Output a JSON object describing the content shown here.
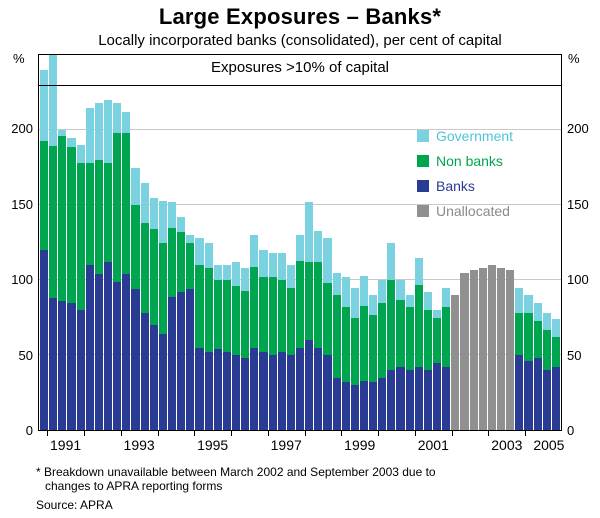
{
  "title": "Large Exposures – Banks*",
  "subtitle": "Locally incorporated banks (consolidated), per cent of capital",
  "panel_label": "Exposures >10% of capital",
  "axis_unit": "%",
  "footnote_line1": "* Breakdown unavailable between March 2002 and September 2003 due to",
  "footnote_line2": "changes to APRA reporting forms",
  "source": "Source: APRA",
  "chart_data": {
    "type": "bar",
    "stacked": true,
    "title": "Large Exposures – Banks*",
    "subtitle": "Locally incorporated banks (consolidated), per cent of capital",
    "panel_label": "Exposures >10% of capital",
    "ylabel": "per cent of capital",
    "ylim": [
      0,
      250
    ],
    "yticks": [
      0,
      50,
      100,
      150,
      200
    ],
    "grid": true,
    "legend_position": "inside-right",
    "colors": {
      "banks": "#2a3b94",
      "nonbanks": "#00a550",
      "government": "#7ad1e0",
      "unallocated": "#909090"
    },
    "legend": [
      {
        "key": "government",
        "label": "Government",
        "color": "#4cc5da"
      },
      {
        "key": "nonbanks",
        "label": "Non banks",
        "color": "#00a550"
      },
      {
        "key": "banks",
        "label": "Banks",
        "color": "#2a3b94"
      },
      {
        "key": "unallocated",
        "label": "Unallocated",
        "color": "#8a8a8a"
      }
    ],
    "xaxis": {
      "start": 1990.75,
      "end": 2005.0,
      "labels": [
        1991,
        1993,
        1995,
        1997,
        1999,
        2001,
        2003,
        2005
      ],
      "tick_years": [
        1991,
        1992,
        1993,
        1994,
        1995,
        1996,
        1997,
        1998,
        1999,
        2000,
        2001,
        2002,
        2003,
        2004
      ]
    },
    "bars": [
      {
        "q": "1990 Q4",
        "banks": 120,
        "nonbanks": 73,
        "government": 47,
        "unallocated": 0
      },
      {
        "q": "1991 Q1",
        "banks": 90,
        "nonbanks": 103,
        "government": 62,
        "unallocated": 0
      },
      {
        "q": "1991 Q2",
        "banks": 86,
        "nonbanks": 110,
        "government": 4,
        "unallocated": 0
      },
      {
        "q": "1991 Q3",
        "banks": 85,
        "nonbanks": 104,
        "government": 6,
        "unallocated": 0
      },
      {
        "q": "1991 Q4",
        "banks": 80,
        "nonbanks": 98,
        "government": 12,
        "unallocated": 0
      },
      {
        "q": "1992 Q1",
        "banks": 110,
        "nonbanks": 68,
        "government": 37,
        "unallocated": 0
      },
      {
        "q": "1992 Q2",
        "banks": 104,
        "nonbanks": 76,
        "government": 38,
        "unallocated": 0
      },
      {
        "q": "1992 Q3",
        "banks": 112,
        "nonbanks": 66,
        "government": 42,
        "unallocated": 0
      },
      {
        "q": "1992 Q4",
        "banks": 99,
        "nonbanks": 99,
        "government": 20,
        "unallocated": 0
      },
      {
        "q": "1993 Q1",
        "banks": 104,
        "nonbanks": 94,
        "government": 14,
        "unallocated": 0
      },
      {
        "q": "1993 Q2",
        "banks": 94,
        "nonbanks": 56,
        "government": 25,
        "unallocated": 0
      },
      {
        "q": "1993 Q3",
        "banks": 78,
        "nonbanks": 60,
        "government": 27,
        "unallocated": 0
      },
      {
        "q": "1993 Q4",
        "banks": 70,
        "nonbanks": 64,
        "government": 21,
        "unallocated": 0
      },
      {
        "q": "1994 Q1",
        "banks": 64,
        "nonbanks": 61,
        "government": 28,
        "unallocated": 0
      },
      {
        "q": "1994 Q2",
        "banks": 89,
        "nonbanks": 46,
        "government": 17,
        "unallocated": 0
      },
      {
        "q": "1994 Q3",
        "banks": 92,
        "nonbanks": 40,
        "government": 10,
        "unallocated": 0
      },
      {
        "q": "1994 Q4",
        "banks": 94,
        "nonbanks": 31,
        "government": 5,
        "unallocated": 0
      },
      {
        "q": "1995 Q1",
        "banks": 55,
        "nonbanks": 55,
        "government": 18,
        "unallocated": 0
      },
      {
        "q": "1995 Q2",
        "banks": 52,
        "nonbanks": 56,
        "government": 17,
        "unallocated": 0
      },
      {
        "q": "1995 Q3",
        "banks": 54,
        "nonbanks": 46,
        "government": 10,
        "unallocated": 0
      },
      {
        "q": "1995 Q4",
        "banks": 52,
        "nonbanks": 48,
        "government": 10,
        "unallocated": 0
      },
      {
        "q": "1996 Q1",
        "banks": 50,
        "nonbanks": 46,
        "government": 16,
        "unallocated": 0
      },
      {
        "q": "1996 Q2",
        "banks": 48,
        "nonbanks": 45,
        "government": 15,
        "unallocated": 0
      },
      {
        "q": "1996 Q3",
        "banks": 55,
        "nonbanks": 54,
        "government": 21,
        "unallocated": 0
      },
      {
        "q": "1996 Q4",
        "banks": 52,
        "nonbanks": 50,
        "government": 18,
        "unallocated": 0
      },
      {
        "q": "1997 Q1",
        "banks": 50,
        "nonbanks": 52,
        "government": 16,
        "unallocated": 0
      },
      {
        "q": "1997 Q2",
        "banks": 52,
        "nonbanks": 48,
        "government": 18,
        "unallocated": 0
      },
      {
        "q": "1997 Q3",
        "banks": 50,
        "nonbanks": 45,
        "government": 15,
        "unallocated": 0
      },
      {
        "q": "1997 Q4",
        "banks": 55,
        "nonbanks": 58,
        "government": 17,
        "unallocated": 0
      },
      {
        "q": "1998 Q1",
        "banks": 60,
        "nonbanks": 52,
        "government": 40,
        "unallocated": 0
      },
      {
        "q": "1998 Q2",
        "banks": 55,
        "nonbanks": 57,
        "government": 21,
        "unallocated": 0
      },
      {
        "q": "1998 Q3",
        "banks": 50,
        "nonbanks": 48,
        "government": 30,
        "unallocated": 0
      },
      {
        "q": "1998 Q4",
        "banks": 35,
        "nonbanks": 55,
        "government": 15,
        "unallocated": 0
      },
      {
        "q": "1999 Q1",
        "banks": 32,
        "nonbanks": 50,
        "government": 20,
        "unallocated": 0
      },
      {
        "q": "1999 Q2",
        "banks": 30,
        "nonbanks": 45,
        "government": 20,
        "unallocated": 0
      },
      {
        "q": "1999 Q3",
        "banks": 33,
        "nonbanks": 50,
        "government": 20,
        "unallocated": 0
      },
      {
        "q": "1999 Q4",
        "banks": 32,
        "nonbanks": 45,
        "government": 13,
        "unallocated": 0
      },
      {
        "q": "2000 Q1",
        "banks": 35,
        "nonbanks": 50,
        "government": 15,
        "unallocated": 0
      },
      {
        "q": "2000 Q2",
        "banks": 40,
        "nonbanks": 60,
        "government": 25,
        "unallocated": 0
      },
      {
        "q": "2000 Q3",
        "banks": 42,
        "nonbanks": 45,
        "government": 13,
        "unallocated": 0
      },
      {
        "q": "2000 Q4",
        "banks": 40,
        "nonbanks": 42,
        "government": 8,
        "unallocated": 0
      },
      {
        "q": "2001 Q1",
        "banks": 42,
        "nonbanks": 55,
        "government": 18,
        "unallocated": 0
      },
      {
        "q": "2001 Q2",
        "banks": 40,
        "nonbanks": 40,
        "government": 12,
        "unallocated": 0
      },
      {
        "q": "2001 Q3",
        "banks": 45,
        "nonbanks": 30,
        "government": 5,
        "unallocated": 0
      },
      {
        "q": "2001 Q4",
        "banks": 42,
        "nonbanks": 40,
        "government": 13,
        "unallocated": 0
      },
      {
        "q": "2002 Q1",
        "banks": 0,
        "nonbanks": 0,
        "government": 0,
        "unallocated": 90
      },
      {
        "q": "2002 Q2",
        "banks": 0,
        "nonbanks": 0,
        "government": 0,
        "unallocated": 105
      },
      {
        "q": "2002 Q3",
        "banks": 0,
        "nonbanks": 0,
        "government": 0,
        "unallocated": 107
      },
      {
        "q": "2002 Q4",
        "banks": 0,
        "nonbanks": 0,
        "government": 0,
        "unallocated": 108
      },
      {
        "q": "2003 Q1",
        "banks": 0,
        "nonbanks": 0,
        "government": 0,
        "unallocated": 110
      },
      {
        "q": "2003 Q2",
        "banks": 0,
        "nonbanks": 0,
        "government": 0,
        "unallocated": 108
      },
      {
        "q": "2003 Q3",
        "banks": 0,
        "nonbanks": 0,
        "government": 0,
        "unallocated": 107
      },
      {
        "q": "2003 Q4",
        "banks": 50,
        "nonbanks": 28,
        "government": 17,
        "unallocated": 0
      },
      {
        "q": "2004 Q1",
        "banks": 46,
        "nonbanks": 32,
        "government": 12,
        "unallocated": 0
      },
      {
        "q": "2004 Q2",
        "banks": 48,
        "nonbanks": 25,
        "government": 12,
        "unallocated": 0
      },
      {
        "q": "2004 Q3",
        "banks": 40,
        "nonbanks": 27,
        "government": 11,
        "unallocated": 0
      },
      {
        "q": "2004 Q4",
        "banks": 42,
        "nonbanks": 20,
        "government": 12,
        "unallocated": 0
      }
    ]
  }
}
